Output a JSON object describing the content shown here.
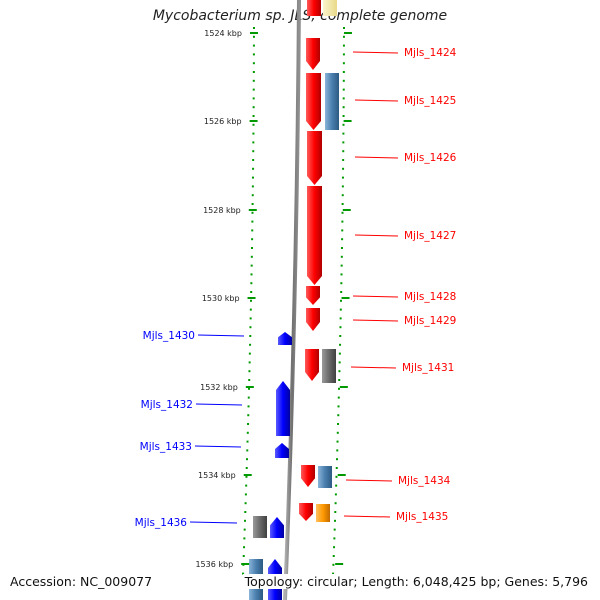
{
  "title": "Mycobacterium sp. JLS, complete genome",
  "footer": {
    "accession": "Accession: NC_009077",
    "summary": "Topology: circular; Length: 6,048,425 bp; Genes: 5,796"
  },
  "colors": {
    "forward_cds": "#ff0000",
    "reverse_cds": "#0000ff",
    "feature_steel": "#4a7fae",
    "feature_gray": "#6a6a6a",
    "feature_orange": "#ff9900",
    "feature_yellow": "#f2e6a0",
    "ticks": "#009900",
    "backbone": "#808080"
  },
  "axis": {
    "ticks": [
      "1524 kbp",
      "1526 kbp",
      "1528 kbp",
      "1530 kbp",
      "1532 kbp",
      "1534 kbp",
      "1536 kbp"
    ]
  },
  "forward_genes": [
    "Mjls_1424",
    "Mjls_1425",
    "Mjls_1426",
    "Mjls_1427",
    "Mjls_1428",
    "Mjls_1429",
    "Mjls_1431",
    "Mjls_1434",
    "Mjls_1435"
  ],
  "reverse_genes": [
    "Mjls_1430",
    "Mjls_1432",
    "Mjls_1433",
    "Mjls_1436"
  ]
}
